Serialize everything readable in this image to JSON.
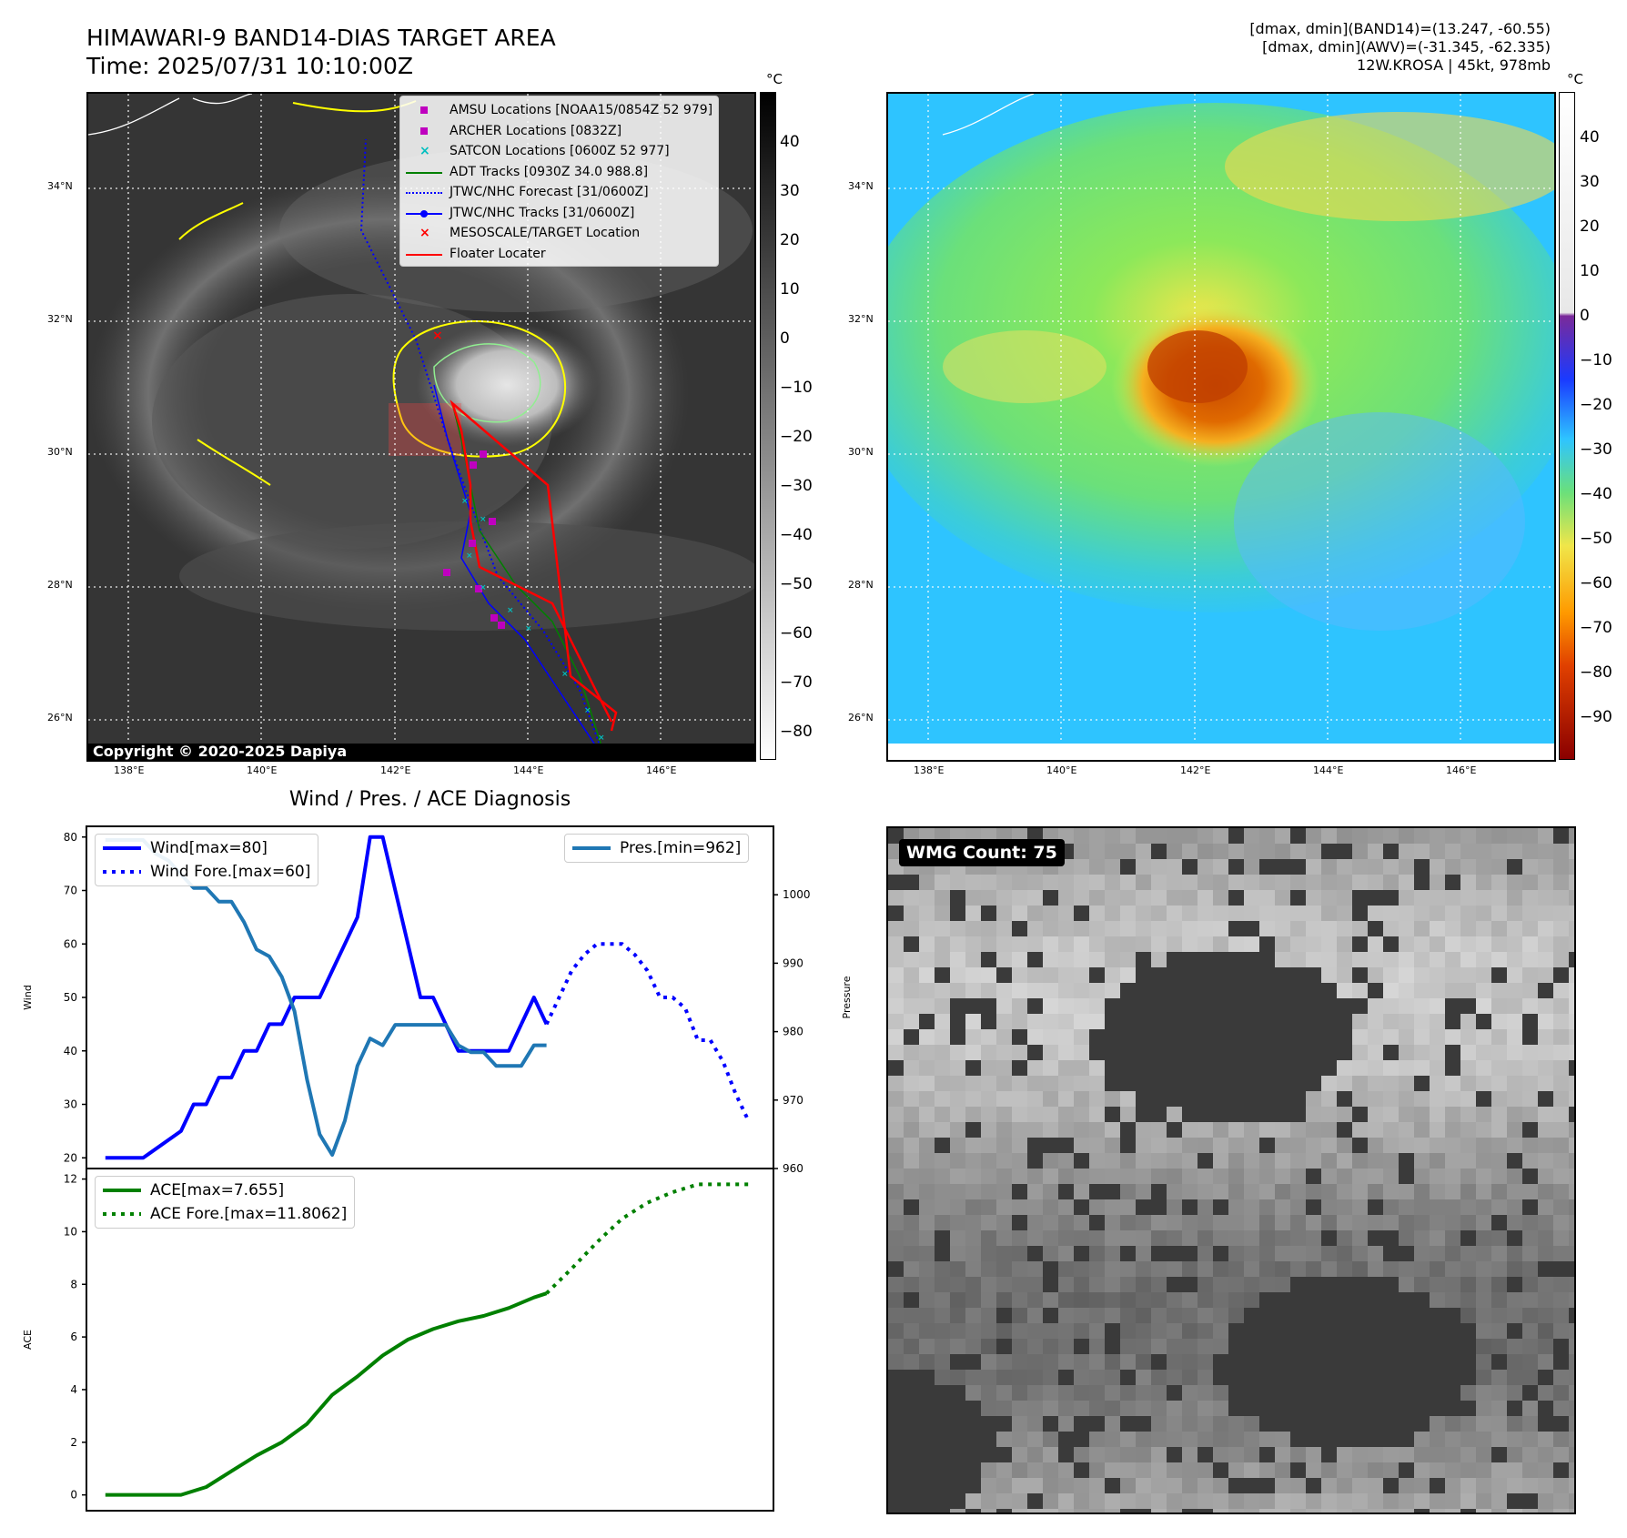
{
  "header": {
    "title_line1": "HIMAWARI-9 BAND14-DIAS TARGET AREA",
    "title_line2": "Time: 2025/07/31 10:10:00Z",
    "info_line1": "[dmax, dmin](BAND14)=(13.247, -60.55)",
    "info_line2": "[dmax, dmin](AWV)=(-31.345, -62.335)",
    "info_line3": "12W.KROSA | 45kt, 978mb"
  },
  "map_axes": {
    "lon_labels": [
      "138°E",
      "140°E",
      "142°E",
      "144°E",
      "146°E"
    ],
    "lat_labels": [
      "34°N",
      "32°N",
      "30°N",
      "28°N",
      "26°N"
    ]
  },
  "ir_panel": {
    "colorbar_unit": "°C",
    "colorbar_ticks": [
      "40",
      "30",
      "20",
      "10",
      "0",
      "−10",
      "−20",
      "−30",
      "−40",
      "−50",
      "−60",
      "−70",
      "−80"
    ],
    "copyright": "Copyright © 2020-2025 Dapiya",
    "legend": [
      {
        "label": "AMSU Locations [NOAA15/0854Z 52 979]",
        "style": "square",
        "color": "#bf00bf"
      },
      {
        "label": "ARCHER Locations [0832Z]",
        "style": "square",
        "color": "#bf00bf"
      },
      {
        "label": "SATCON Locations [0600Z 52 977]",
        "style": "x",
        "color": "#00bfbf"
      },
      {
        "label": "ADT Tracks [0930Z 34.0 988.8]",
        "style": "line",
        "color": "#008000"
      },
      {
        "label": "JTWC/NHC Forecast [31/0600Z]",
        "style": "dotted",
        "color": "#0000ff"
      },
      {
        "label": "JTWC/NHC Tracks [31/0600Z]",
        "style": "line-dot",
        "color": "#0000ff"
      },
      {
        "label": "MESOSCALE/TARGET Location",
        "style": "x",
        "color": "#ff0000"
      },
      {
        "label": "Floater Locater",
        "style": "line",
        "color": "#ff0000"
      }
    ]
  },
  "awv_panel": {
    "colorbar_unit": "°C",
    "colorbar_ticks": [
      "40",
      "30",
      "20",
      "10",
      "0",
      "−10",
      "−20",
      "−30",
      "−40",
      "−50",
      "−60",
      "−70",
      "−80",
      "−90"
    ]
  },
  "wmg_panel": {
    "badge": "WMG Count: 75"
  },
  "chart_data": [
    {
      "type": "line",
      "title": "Wind / Pres. / ACE Diagnosis",
      "ylabel": "Wind",
      "y2label": "Pressure",
      "ylim": [
        18,
        82
      ],
      "y2lim": [
        960,
        1010
      ],
      "yticks": [
        "80",
        "70",
        "60",
        "50",
        "40",
        "30",
        "20"
      ],
      "y2ticks": [
        "1000",
        "990",
        "980",
        "970",
        "960"
      ],
      "series": [
        {
          "name": "Wind[max=80]",
          "color": "#0000ff",
          "style": "solid",
          "x": [
            0,
            3,
            6,
            7,
            8,
            9,
            10,
            11,
            12,
            13,
            14,
            15,
            16,
            17,
            18,
            19,
            20,
            21,
            22,
            23,
            24,
            25,
            26,
            27,
            28,
            29,
            30,
            31,
            32,
            33
          ],
          "values": [
            20,
            20,
            25,
            30,
            30,
            35,
            35,
            40,
            40,
            45,
            45,
            50,
            50,
            50,
            55,
            60,
            65,
            80,
            80,
            70,
            60,
            50,
            50,
            45,
            40,
            40,
            40,
            40,
            40,
            45
          ]
        },
        {
          "name": "Wind[max=80]",
          "color": "#0000ff",
          "style": "solid",
          "x": [
            33,
            34,
            35
          ],
          "values": [
            45,
            50,
            45
          ]
        },
        {
          "name": "Wind Fore.[max=60]",
          "color": "#0000ff",
          "style": "dotted",
          "x": [
            35,
            36,
            37,
            38,
            39,
            40,
            41,
            42,
            43,
            44,
            45,
            46,
            47,
            48,
            49,
            50,
            51
          ],
          "values": [
            45,
            50,
            55,
            58,
            60,
            60,
            60,
            58,
            55,
            50,
            50,
            48,
            42,
            42,
            38,
            32,
            27
          ]
        },
        {
          "name": "Pres.[min=962]",
          "color": "#1f77b4",
          "style": "solid",
          "axis": "right",
          "x": [
            0,
            3,
            4,
            5,
            6,
            7,
            8,
            9,
            10,
            11,
            12,
            13,
            14,
            15,
            16,
            17,
            18,
            19,
            20,
            21,
            22,
            23,
            24,
            25,
            26,
            27,
            28,
            29,
            30,
            31,
            32,
            33,
            34,
            35
          ],
          "values": [
            1008,
            1008,
            1006,
            1005,
            1003,
            1001,
            1001,
            999,
            999,
            996,
            992,
            991,
            988,
            983,
            973,
            965,
            962,
            967,
            975,
            979,
            978,
            981,
            981,
            981,
            981,
            981,
            978,
            977,
            977,
            975,
            975,
            975,
            978,
            978
          ]
        },
        {
          "name": "ACE[max=7.655]",
          "color": "#008000",
          "style": "solid",
          "panel": "ace",
          "x": [
            0,
            3,
            6,
            8,
            10,
            12,
            14,
            16,
            18,
            20,
            22,
            24,
            26,
            28,
            30,
            32,
            34,
            35
          ],
          "values": [
            0,
            0,
            0,
            0.3,
            0.9,
            1.5,
            2.0,
            2.7,
            3.8,
            4.5,
            5.3,
            5.9,
            6.3,
            6.6,
            6.8,
            7.1,
            7.5,
            7.655
          ]
        },
        {
          "name": "ACE Fore.[max=11.8062]",
          "color": "#008000",
          "style": "dotted",
          "panel": "ace",
          "x": [
            35,
            37,
            39,
            41,
            43,
            45,
            47,
            49,
            51
          ],
          "values": [
            7.655,
            8.6,
            9.6,
            10.5,
            11.1,
            11.5,
            11.8,
            11.8,
            11.8
          ]
        }
      ],
      "ace_ylabel": "ACE",
      "ace_ylim": [
        -0.6,
        12.4
      ],
      "ace_yticks": [
        "12",
        "10",
        "8",
        "6",
        "4",
        "2",
        "0"
      ],
      "legend_placement": [
        "top-left",
        "top-right",
        "top-left"
      ]
    }
  ]
}
